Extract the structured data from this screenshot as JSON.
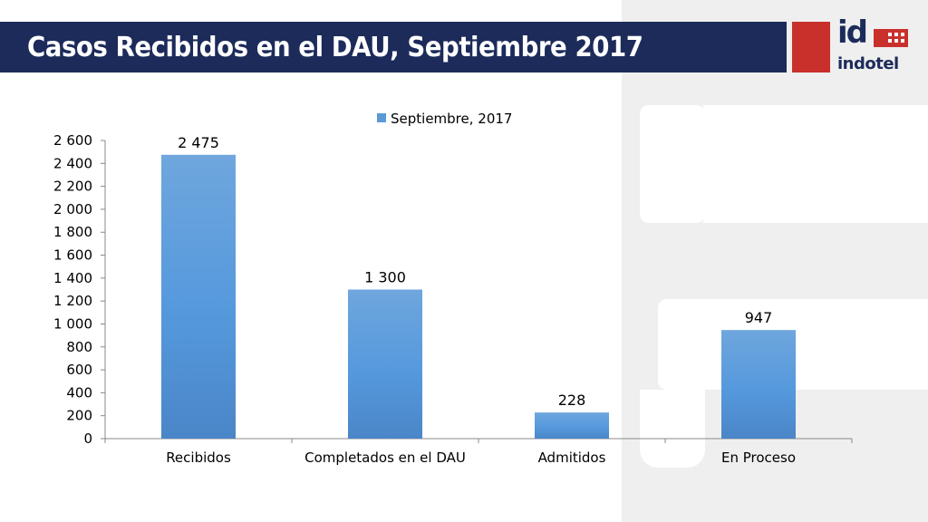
{
  "slide": {
    "title": "Casos Recibidos en el DAU, Septiembre 2017",
    "logo": {
      "mark": "id",
      "name": "indotel"
    }
  },
  "colors": {
    "title_bar": "#1c2b5a",
    "logo_red": "#c9302c",
    "bar_top": "#6fa6dd",
    "bar_bottom": "#4a86c8"
  },
  "chart_data": {
    "type": "bar",
    "categories": [
      "Recibidos",
      "Completados en el DAU",
      "Admitidos",
      "En Proceso"
    ],
    "series": [
      {
        "name": "Septiembre, 2017",
        "values": [
          2475,
          1300,
          228,
          947
        ]
      }
    ],
    "data_labels": [
      "2 475",
      "1 300",
      "228",
      "947"
    ],
    "y_ticks": [
      "0",
      "200",
      "400",
      "600",
      "800",
      "1 000",
      "1 200",
      "1 400",
      "1 600",
      "1 800",
      "2 000",
      "2 200",
      "2 400",
      "2 600"
    ],
    "ylim": [
      0,
      2600
    ],
    "y_step": 200,
    "legend_position": "top",
    "grid": false,
    "title": "",
    "xlabel": "",
    "ylabel": ""
  }
}
